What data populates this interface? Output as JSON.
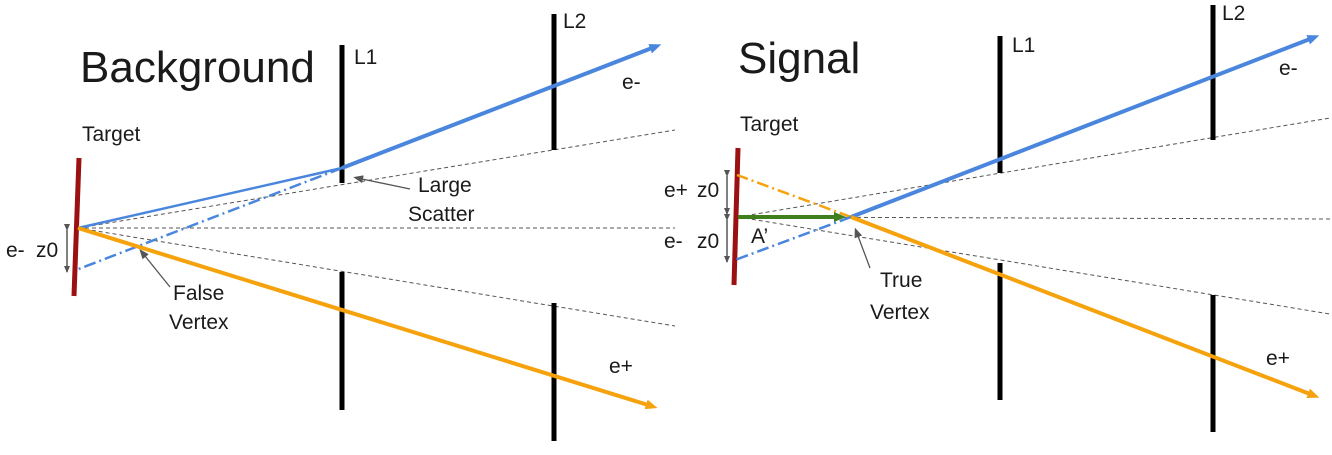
{
  "panels": {
    "background": {
      "title": "Background",
      "target_label": "Target",
      "layer1_label": "L1",
      "layer2_label": "L2",
      "electron_label": "e-",
      "positron_label": "e+",
      "offset_particle": "e-",
      "offset_label": "z0",
      "scatter_note": [
        "Large",
        "Scatter"
      ],
      "vertex_note": [
        "False",
        "Vertex"
      ]
    },
    "signal": {
      "title": "Signal",
      "target_label": "Target",
      "layer1_label": "L1",
      "layer2_label": "L2",
      "electron_label": "e-",
      "positron_label": "e+",
      "upper_offset_particle": "e+",
      "upper_offset_label": "z0",
      "lower_offset_particle": "e-",
      "lower_offset_label": "z0",
      "boson_label": "A’",
      "vertex_note": [
        "True",
        "Vertex"
      ]
    }
  },
  "colors": {
    "electron": "#4a86dd",
    "positron": "#f5a20c",
    "boson": "#3f7f1e",
    "target": "#9b1010",
    "detector": "#000000",
    "guide": "#555555",
    "pointer": "#555555"
  }
}
